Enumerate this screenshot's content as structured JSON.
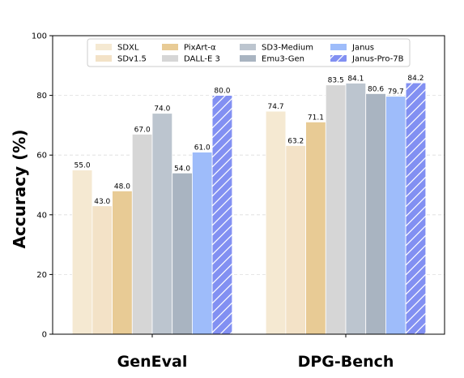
{
  "chart_data": {
    "type": "bar",
    "ylabel": "Accuracy (%)",
    "xlabel": "",
    "ylim": [
      0,
      100
    ],
    "yticks": [
      0,
      20,
      40,
      60,
      80,
      100
    ],
    "grid": true,
    "legend_position": "top",
    "categories": [
      "GenEval",
      "DPG-Bench"
    ],
    "series": [
      {
        "name": "SDXL",
        "color": "#f5e9d2",
        "hatch": false,
        "values": [
          55.0,
          74.7
        ],
        "labels": [
          "55.0",
          "74.7"
        ]
      },
      {
        "name": "SDv1.5",
        "color": "#f3e2c7",
        "hatch": false,
        "values": [
          43.0,
          63.2
        ],
        "labels": [
          "43.0",
          "63.2"
        ]
      },
      {
        "name": "PixArt-α",
        "color": "#e8cb95",
        "hatch": false,
        "values": [
          48.0,
          71.1
        ],
        "labels": [
          "48.0",
          "71.1"
        ]
      },
      {
        "name": "DALL-E 3",
        "color": "#d6d6d6",
        "hatch": false,
        "values": [
          67.0,
          83.5
        ],
        "labels": [
          "67.0",
          "83.5"
        ]
      },
      {
        "name": "SD3-Medium",
        "color": "#bcc5cf",
        "hatch": false,
        "values": [
          74.0,
          84.1
        ],
        "labels": [
          "74.0",
          "84.1"
        ]
      },
      {
        "name": "Emu3-Gen",
        "color": "#a9b4c1",
        "hatch": false,
        "values": [
          54.0,
          80.6
        ],
        "labels": [
          "54.0",
          "80.6"
        ]
      },
      {
        "name": "Janus",
        "color": "#9ebcfa",
        "hatch": false,
        "values": [
          61.0,
          79.7
        ],
        "labels": [
          "61.0",
          "79.7"
        ]
      },
      {
        "name": "Janus-Pro-7B",
        "color": "#8290f2",
        "hatch": true,
        "values": [
          80.0,
          84.2
        ],
        "labels": [
          "80.0",
          "84.2"
        ]
      }
    ]
  }
}
